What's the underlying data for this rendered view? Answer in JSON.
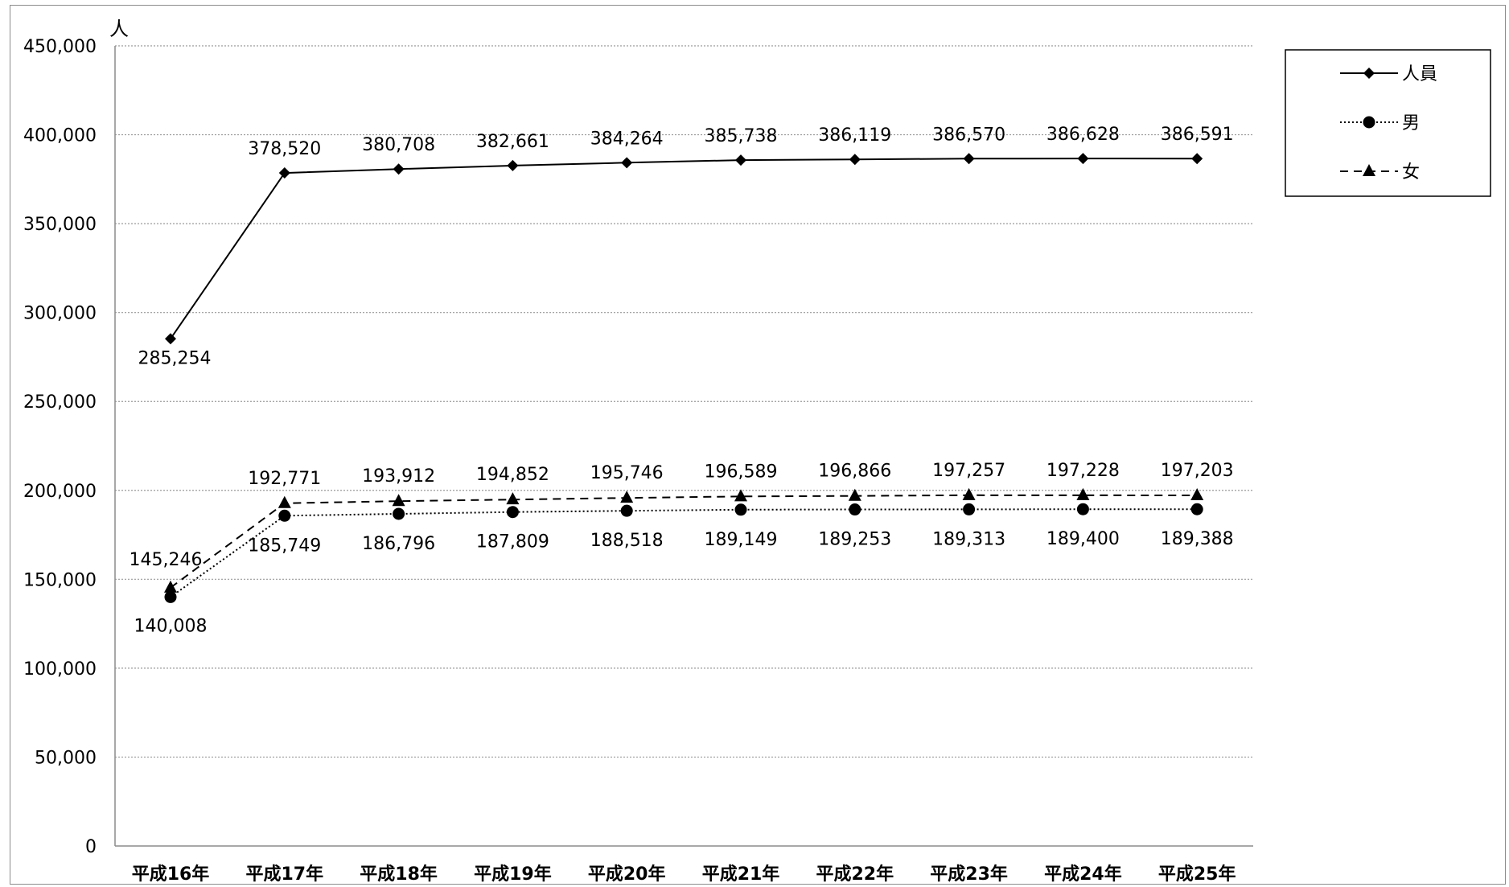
{
  "chart_data": {
    "type": "line",
    "ylabel": "人",
    "ylim": [
      0,
      450000
    ],
    "yticks": [
      "0",
      "50,000",
      "100,000",
      "150,000",
      "200,000",
      "250,000",
      "300,000",
      "350,000",
      "400,000",
      "450,000"
    ],
    "grid": true,
    "legend_position": "top-right",
    "categories": [
      "平成16年",
      "平成17年",
      "平成18年",
      "平成19年",
      "平成20年",
      "平成21年",
      "平成22年",
      "平成23年",
      "平成24年",
      "平成25年"
    ],
    "series": [
      {
        "name": "人員",
        "marker": "diamond",
        "line_style": "solid",
        "values": [
          285254,
          378520,
          380708,
          382661,
          384264,
          385738,
          386119,
          386570,
          386628,
          386591
        ],
        "labels": [
          "285,254",
          "378,520",
          "380,708",
          "382,661",
          "384,264",
          "385,738",
          "386,119",
          "386,570",
          "386,628",
          "386,591"
        ]
      },
      {
        "name": "男",
        "marker": "circle",
        "line_style": "dotted",
        "values": [
          140008,
          185749,
          186796,
          187809,
          188518,
          189149,
          189253,
          189313,
          189400,
          189388
        ],
        "labels": [
          "140,008",
          "185,749",
          "186,796",
          "187,809",
          "188,518",
          "189,149",
          "189,253",
          "189,313",
          "189,400",
          "189,388"
        ]
      },
      {
        "name": "女",
        "marker": "triangle",
        "line_style": "dashed",
        "values": [
          145246,
          192771,
          193912,
          194852,
          195746,
          196589,
          196866,
          197257,
          197228,
          197203
        ],
        "labels": [
          "145,246",
          "192,771",
          "193,912",
          "194,852",
          "195,746",
          "196,589",
          "196,866",
          "197,257",
          "197,228",
          "197,203"
        ]
      }
    ],
    "colors": {
      "line": "#000000",
      "grid": "#9a9a9a",
      "frame": "#8c8c8c"
    }
  }
}
